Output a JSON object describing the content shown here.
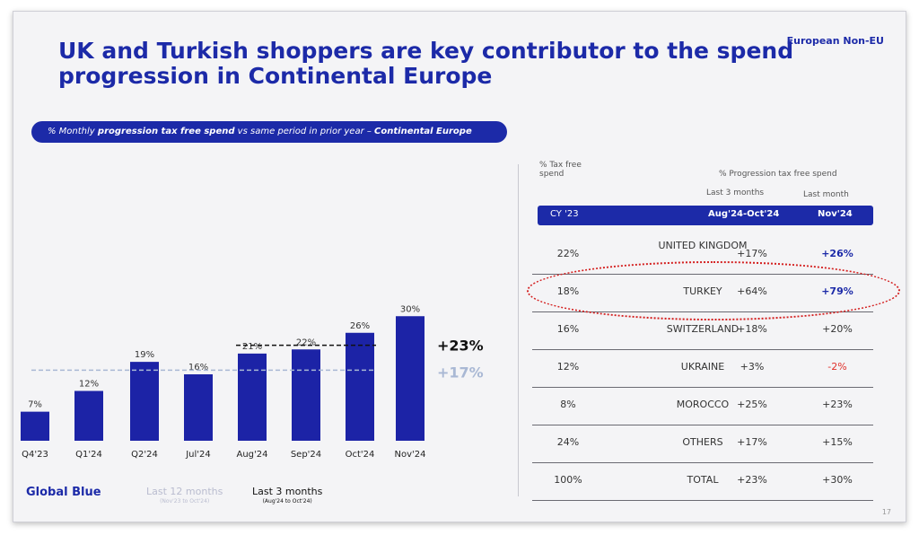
{
  "title": "UK and Turkish shoppers are key contributor to the spend progression in Continental Europe",
  "region_tag": "European Non-EU",
  "subtitle": {
    "part1": "% Monthly ",
    "bold": "progression tax free spend",
    "part2": " vs same period in prior year – ",
    "bold2": "Continental Europe"
  },
  "chart_data": {
    "type": "bar",
    "categories": [
      "Q4'23",
      "Q1'24",
      "Q2'24",
      "Jul'24",
      "Aug'24",
      "Sep'24",
      "Oct'24",
      "Nov'24"
    ],
    "values": [
      7,
      12,
      19,
      16,
      21,
      22,
      26,
      30
    ],
    "value_labels": [
      "7%",
      "12%",
      "19%",
      "16%",
      "21%",
      "22%",
      "26%",
      "30%"
    ],
    "ylim": [
      0,
      32
    ],
    "averages": [
      {
        "label": "+23%",
        "value": 23,
        "color": "#111111",
        "style": "dashed"
      },
      {
        "label": "+17%",
        "value": 17,
        "color": "#a9b8d4",
        "style": "dashed"
      }
    ]
  },
  "legend": {
    "last12": {
      "label": "Last 12 months",
      "sub": "(Nov'23 to Oct'24)"
    },
    "last3": {
      "label": "Last 3 months",
      "sub": "(Aug'24 to Oct'24)"
    }
  },
  "logo": "Global Blue",
  "table": {
    "col_share_header": "% Tax free spend",
    "progression_header": "% Progression tax free spend",
    "col_3m_header": "Last 3 months",
    "col_lm_header": "Last month",
    "bar_cy": "CY '23",
    "bar_3m": "Aug'24-Oct'24",
    "bar_lm": "Nov'24",
    "rows": [
      {
        "share": "22%",
        "name": "UNITED KINGDOM",
        "three": "+17%",
        "last": "+26%"
      },
      {
        "share": "18%",
        "name": "TURKEY",
        "three": "+64%",
        "last": "+79%"
      },
      {
        "share": "16%",
        "name": "SWITZERLAND",
        "three": "+18%",
        "last": "+20%"
      },
      {
        "share": "12%",
        "name": "UKRAINE",
        "three": "+3%",
        "last": "-2%"
      },
      {
        "share": "8%",
        "name": "MOROCCO",
        "three": "+25%",
        "last": "+23%"
      },
      {
        "share": "24%",
        "name": "OTHERS",
        "three": "+17%",
        "last": "+15%"
      },
      {
        "share": "100%",
        "name": "TOTAL",
        "three": "+23%",
        "last": "+30%"
      }
    ]
  },
  "page_number": "17",
  "colors": {
    "brand": "#1c2aa8",
    "bar": "#1c23a6",
    "negative": "#e0302a",
    "highlight": "#d42020"
  }
}
